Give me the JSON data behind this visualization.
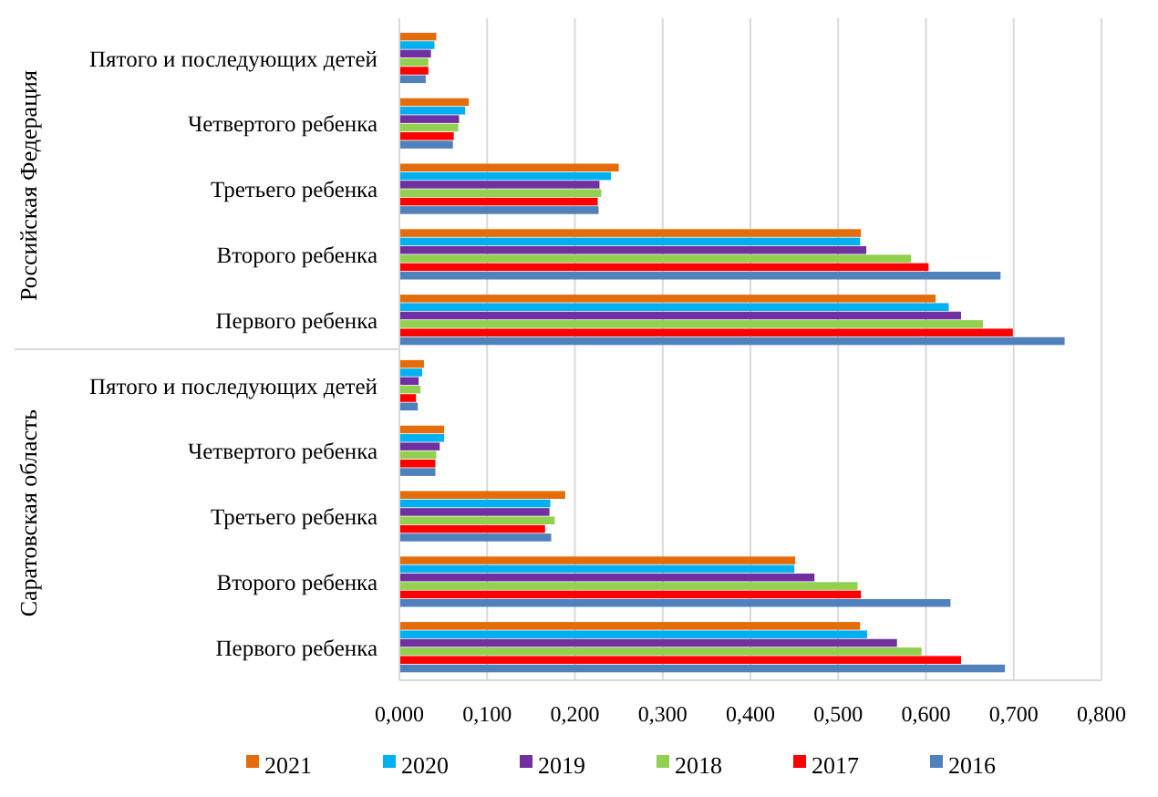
{
  "chart_data": {
    "type": "bar",
    "orientation": "horizontal",
    "categories": [
      "Пятого и последующих детей",
      "Четвертого ребенка",
      "Третьего ребенка",
      "Второго ребенка",
      "Первого ребенка",
      "Пятого и последующих детей",
      "Четвертого ребенка",
      "Третьего ребенка",
      "Второго ребенка",
      "Первого ребенка"
    ],
    "series": [
      {
        "name": "2021",
        "color": "#e46c0a",
        "values": [
          0.042,
          0.079,
          0.25,
          0.526,
          0.611,
          0.028,
          0.051,
          0.189,
          0.451,
          0.525
        ]
      },
      {
        "name": "2020",
        "color": "#00b0f0",
        "values": [
          0.04,
          0.075,
          0.241,
          0.525,
          0.626,
          0.026,
          0.051,
          0.172,
          0.45,
          0.533
        ]
      },
      {
        "name": "2019",
        "color": "#7030a0",
        "values": [
          0.036,
          0.068,
          0.228,
          0.532,
          0.64,
          0.022,
          0.046,
          0.171,
          0.473,
          0.567
        ]
      },
      {
        "name": "2018",
        "color": "#92d050",
        "values": [
          0.033,
          0.067,
          0.23,
          0.583,
          0.665,
          0.024,
          0.042,
          0.177,
          0.522,
          0.595
        ]
      },
      {
        "name": "2017",
        "color": "#ff0000",
        "values": [
          0.033,
          0.062,
          0.226,
          0.603,
          0.699,
          0.019,
          0.041,
          0.166,
          0.526,
          0.64
        ]
      },
      {
        "name": "2016",
        "color": "#4f81bd",
        "values": [
          0.03,
          0.061,
          0.227,
          0.685,
          0.758,
          0.021,
          0.041,
          0.173,
          0.628,
          0.69
        ]
      }
    ],
    "xlim": [
      0,
      0.8
    ],
    "xticks": [
      {
        "value": 0,
        "label": "0,000"
      },
      {
        "value": 0.1,
        "label": "0,100"
      },
      {
        "value": 0.2,
        "label": "0,200"
      },
      {
        "value": 0.3,
        "label": "0,300"
      },
      {
        "value": 0.4,
        "label": "0,400"
      },
      {
        "value": 0.5,
        "label": "0,500"
      },
      {
        "value": 0.6,
        "label": "0,600"
      },
      {
        "value": 0.7,
        "label": "0,700"
      },
      {
        "value": 0.8,
        "label": "0,800"
      }
    ],
    "grid": "x",
    "legend": "bottom",
    "annotations": [
      "Российская Федерация",
      "Саратовская область"
    ]
  }
}
